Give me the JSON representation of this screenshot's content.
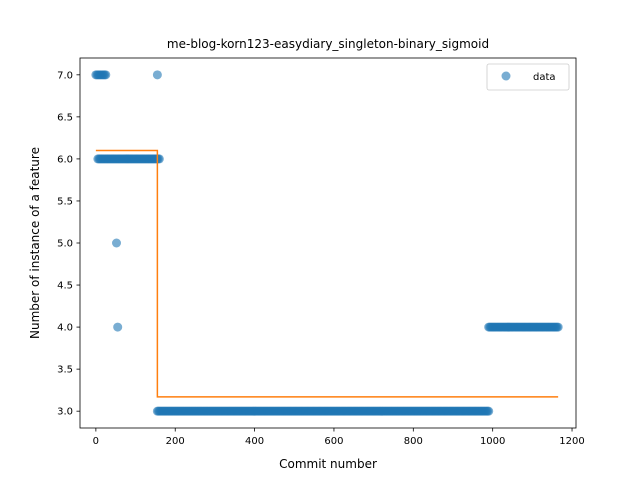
{
  "chart_data": {
    "type": "scatter",
    "title": "me-blog-korn123-easydiary_singleton-binary_sigmoid",
    "xlabel": "Commit number",
    "ylabel": "Number of instance of a feature",
    "xlim": [
      -40,
      1210
    ],
    "ylim": [
      2.8,
      7.2
    ],
    "xticks": [
      0,
      200,
      400,
      600,
      800,
      1000,
      1200
    ],
    "yticks": [
      3.0,
      3.5,
      4.0,
      4.5,
      5.0,
      5.5,
      6.0,
      6.5,
      7.0
    ],
    "xtick_labels": [
      "0",
      "200",
      "400",
      "600",
      "800",
      "1000",
      "1200"
    ],
    "ytick_labels": [
      "3.0",
      "3.5",
      "4.0",
      "4.5",
      "5.0",
      "5.5",
      "6.0",
      "6.5",
      "7.0"
    ],
    "legend_position": "top-right",
    "colors": {
      "data": "#1f77b4",
      "fit": "#ff7f0e"
    },
    "series": [
      {
        "name": "data",
        "kind": "scatter",
        "segments": [
          {
            "x_start": 0,
            "x_end": 25,
            "y": 7
          },
          {
            "x_start": 5,
            "x_end": 160,
            "y": 6
          },
          {
            "x_start": 155,
            "x_end": 990,
            "y": 3
          },
          {
            "x_start": 990,
            "x_end": 1165,
            "y": 4
          }
        ],
        "points": [
          {
            "x": 155,
            "y": 7
          },
          {
            "x": 52,
            "y": 5
          },
          {
            "x": 55,
            "y": 4
          }
        ]
      },
      {
        "kind": "line",
        "x": [
          0,
          155,
          155,
          1165
        ],
        "y": [
          6.1,
          6.1,
          3.17,
          3.17
        ]
      }
    ]
  }
}
